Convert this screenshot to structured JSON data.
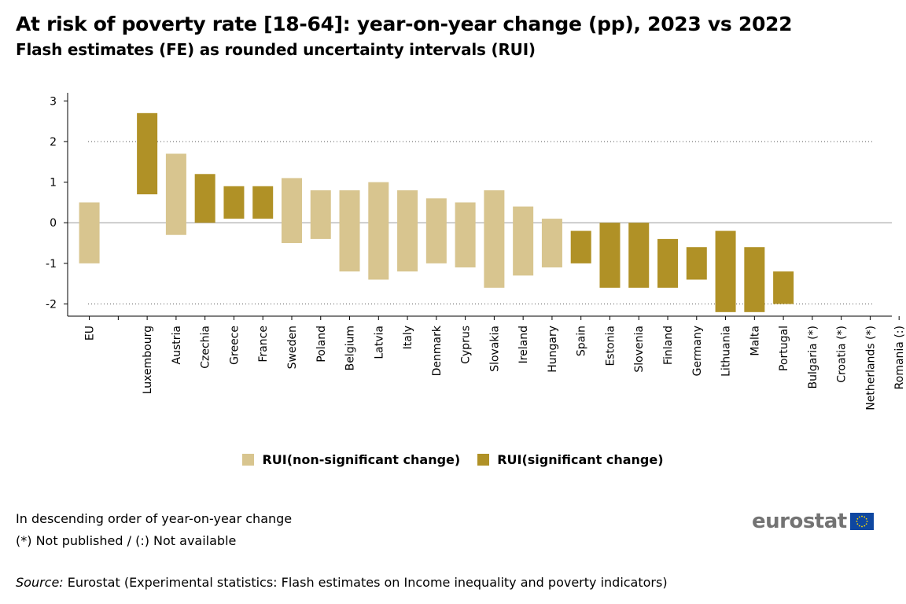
{
  "title": "At risk of poverty rate [18-64]: year-on-year change (pp), 2023 vs 2022",
  "subtitle": "Flash estimates (FE) as rounded uncertainty intervals (RUI)",
  "legend": [
    {
      "label": "RUI(non-significant change)",
      "color": "#d8c58f"
    },
    {
      "label": "RUI(significant change)",
      "color": "#b09126"
    }
  ],
  "notes": {
    "line1": "In descending order of year-on-year change",
    "line2": "(*) Not published / (:) Not available"
  },
  "source": {
    "label": "Source:",
    "text": " Eurostat (Experimental statistics: Flash estimates on Income inequality and poverty indicators)"
  },
  "logo": {
    "text": "eurostat",
    "icon": "eu-flag-icon"
  },
  "colors": {
    "non_significant": "#d8c58f",
    "significant": "#b09126"
  },
  "chart_data": {
    "type": "bar",
    "subtype": "floating-range",
    "ylim": [
      -2.3,
      3.2
    ],
    "yticks": [
      3,
      2,
      1,
      0,
      -1,
      -2
    ],
    "grid": "dotted lines at 2 and -2, solid line at 0",
    "legend_position": "bottom-center",
    "categories": [
      "EU",
      "",
      "Luxembourg",
      "Austria",
      "Czechia",
      "Greece",
      "France",
      "Sweden",
      "Poland",
      "Belgium",
      "Latvia",
      "Italy",
      "Denmark",
      "Cyprus",
      "Slovakia",
      "Ireland",
      "Hungary",
      "Spain",
      "Estonia",
      "Slovenia",
      "Finland",
      "Germany",
      "Lithuania",
      "Malta",
      "Portugal",
      "Bulgaria (*)",
      "Croatia (*)",
      "Netherlands (*)",
      "Romania (:)"
    ],
    "series": [
      {
        "name": "RUI(non-significant change)",
        "color": "#d8c58f",
        "ranges": [
          [
            -1.0,
            0.5
          ],
          null,
          null,
          [
            -0.3,
            1.7
          ],
          null,
          null,
          null,
          [
            -0.5,
            1.1
          ],
          [
            -0.4,
            0.8
          ],
          [
            -1.2,
            0.8
          ],
          [
            -1.4,
            1.0
          ],
          [
            -1.2,
            0.8
          ],
          [
            -1.0,
            0.6
          ],
          [
            -1.1,
            0.5
          ],
          [
            -1.6,
            0.8
          ],
          [
            -1.3,
            0.4
          ],
          [
            -1.1,
            0.1
          ],
          null,
          null,
          null,
          null,
          null,
          null,
          null,
          null,
          null,
          null,
          null,
          null
        ]
      },
      {
        "name": "RUI(significant change)",
        "color": "#b09126",
        "ranges": [
          null,
          null,
          [
            0.7,
            2.7
          ],
          null,
          [
            0.0,
            1.2
          ],
          [
            0.1,
            0.9
          ],
          [
            0.1,
            0.9
          ],
          null,
          null,
          null,
          null,
          null,
          null,
          null,
          null,
          null,
          null,
          [
            -1.0,
            -0.2
          ],
          [
            -1.6,
            0.0
          ],
          [
            -1.6,
            0.0
          ],
          [
            -1.6,
            -0.4
          ],
          [
            -1.4,
            -0.6
          ],
          [
            -2.2,
            -0.2
          ],
          [
            -2.2,
            -0.6
          ],
          [
            -2.0,
            -1.2
          ],
          null,
          null,
          null,
          null
        ]
      }
    ]
  }
}
